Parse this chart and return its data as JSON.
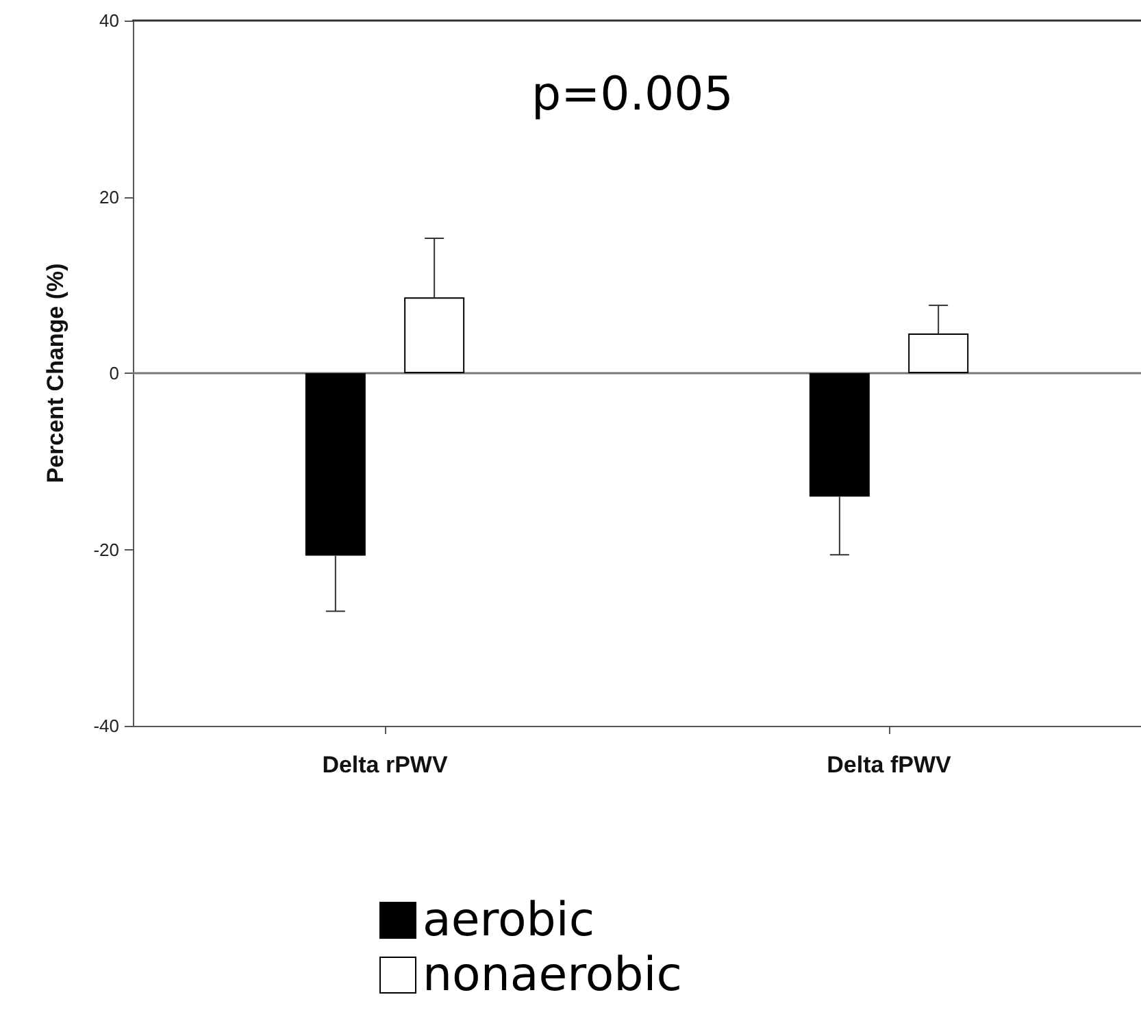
{
  "chart_data": {
    "type": "bar",
    "ylabel": "Percent Change (%)",
    "categories": [
      "Delta rPWV",
      "Delta fPWV"
    ],
    "series": [
      {
        "name": "aerobic",
        "color": "#000000",
        "values": [
          -20.7,
          -14
        ],
        "errors": [
          [
            -27,
            -20.7
          ],
          [
            -20.6,
            -14
          ]
        ]
      },
      {
        "name": "nonaerobic",
        "color": "#ffffff",
        "values": [
          8.6,
          4.5
        ],
        "errors": [
          [
            8.6,
            15.3
          ],
          [
            4.5,
            7.7
          ]
        ]
      }
    ],
    "ylim": [
      -40,
      40
    ],
    "yticks": [
      -40,
      -20,
      0,
      20,
      40
    ],
    "annotations": [
      "p=0.005"
    ],
    "ref_lines": [
      {
        "axis": "y",
        "value": 0,
        "color": "#777777"
      }
    ],
    "legend": "bottom"
  }
}
